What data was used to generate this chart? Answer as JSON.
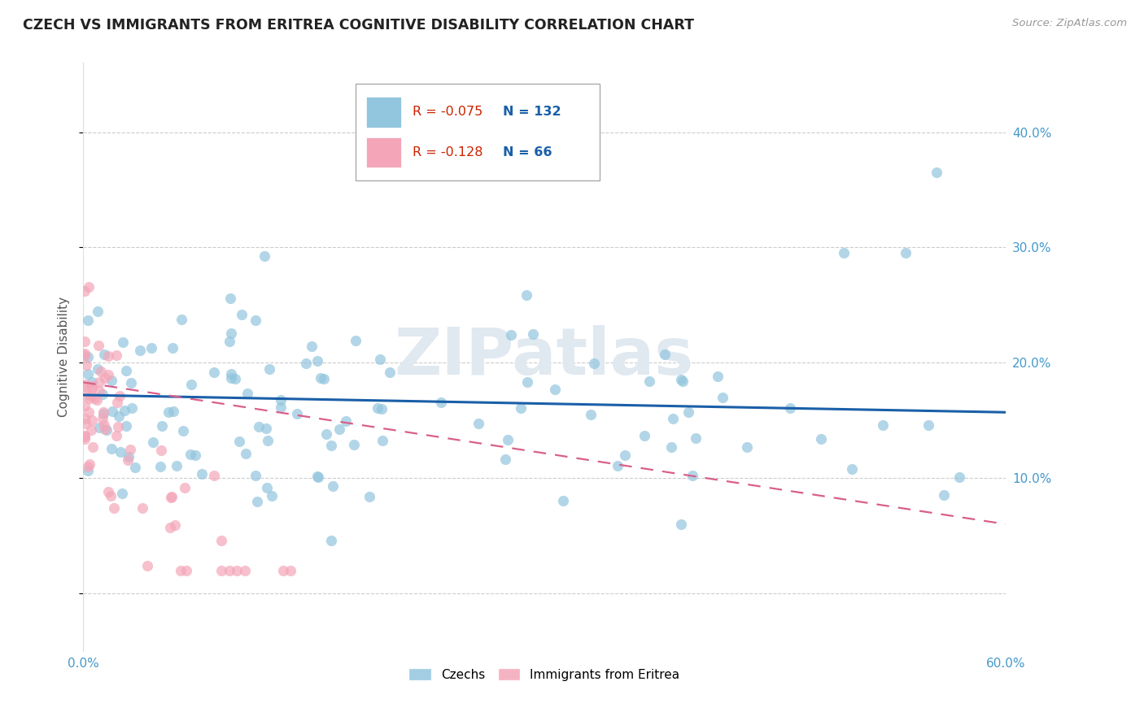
{
  "title": "CZECH VS IMMIGRANTS FROM ERITREA COGNITIVE DISABILITY CORRELATION CHART",
  "source": "Source: ZipAtlas.com",
  "ylabel": "Cognitive Disability",
  "watermark": "ZIPatlas",
  "xlim": [
    0.0,
    0.6
  ],
  "ylim": [
    -0.05,
    0.46
  ],
  "ytick_positions": [
    0.0,
    0.1,
    0.2,
    0.3,
    0.4
  ],
  "ytick_labels": [
    "",
    "10.0%",
    "20.0%",
    "30.0%",
    "40.0%"
  ],
  "xtick_positions": [
    0.0,
    0.6
  ],
  "xtick_labels": [
    "0.0%",
    "60.0%"
  ],
  "legend_r_czech": "-0.075",
  "legend_n_czech": "132",
  "legend_r_eritrea": "-0.128",
  "legend_n_eritrea": "66",
  "blue_color": "#92c5de",
  "pink_color": "#f4a6b8",
  "blue_line_color": "#1a5fa8",
  "pink_line_color": "#d95f8a",
  "background_color": "#ffffff",
  "grid_color": "#cccccc",
  "axis_color": "#4499cc",
  "title_color": "#222222",
  "blue_line_y0": 0.172,
  "blue_line_y1": 0.157,
  "pink_line_y0": 0.183,
  "pink_line_y1": 0.06,
  "watermark_color": "#e0e8f0",
  "legend_label_color_r": "#cc2200",
  "legend_label_color_n": "#1a5fa8"
}
